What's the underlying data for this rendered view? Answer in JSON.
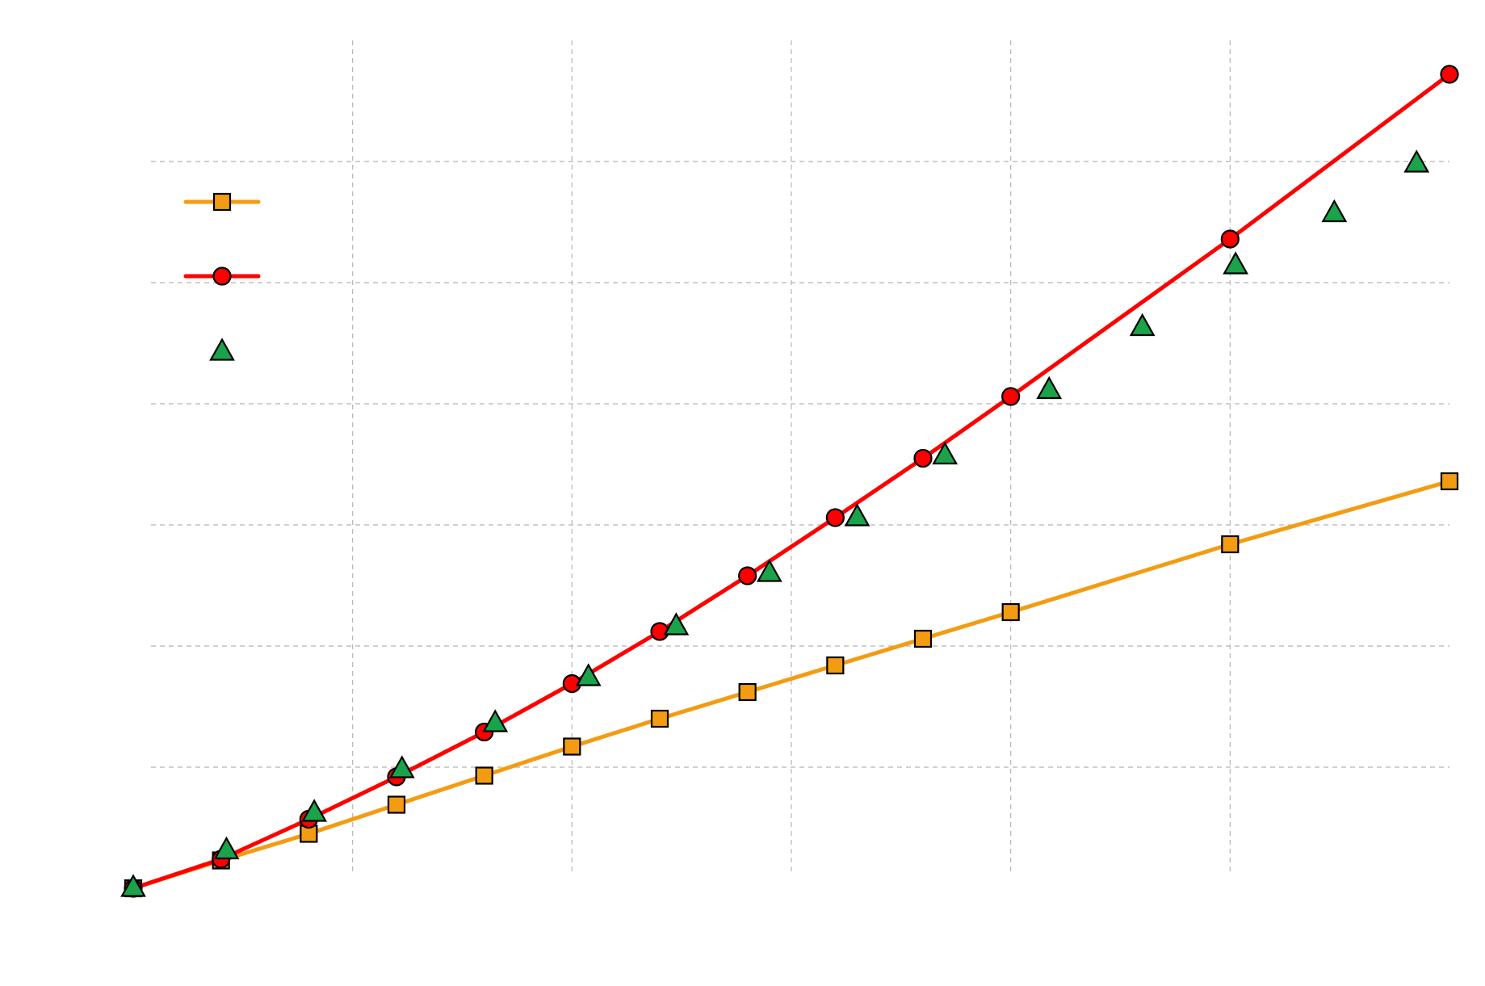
{
  "chart_data": {
    "type": "line",
    "title": "",
    "xlabel": "",
    "ylabel": "",
    "xlim": [
      0,
      12
    ],
    "ylim": [
      -0.2,
      6.5
    ],
    "x_gridlines": [
      2,
      4,
      6,
      8,
      10
    ],
    "y_gridlines": [
      1,
      2,
      3,
      4,
      5,
      6
    ],
    "grid": true,
    "legend_position": "upper-left",
    "series": [
      {
        "color": "#f39c12",
        "marker": "square",
        "line": true,
        "x": [
          0,
          0.8,
          1.6,
          2.4,
          3.2,
          4.0,
          4.8,
          5.6,
          6.4,
          7.2,
          8.0,
          10.0,
          12.0
        ],
        "y": [
          0.0,
          0.23,
          0.45,
          0.69,
          0.93,
          1.17,
          1.4,
          1.62,
          1.84,
          2.06,
          2.28,
          2.84,
          3.36
        ]
      },
      {
        "color": "#ff0000",
        "marker": "circle",
        "line": true,
        "x": [
          0,
          0.8,
          1.6,
          2.4,
          3.2,
          4.0,
          4.8,
          5.6,
          6.4,
          7.2,
          8.0,
          10.0,
          12.0
        ],
        "y": [
          0.0,
          0.24,
          0.57,
          0.92,
          1.29,
          1.69,
          2.12,
          2.58,
          3.06,
          3.55,
          4.06,
          5.36,
          6.72
        ]
      },
      {
        "color": "#1aa34a",
        "marker": "triangle",
        "line": false,
        "x": [
          0,
          0.85,
          1.65,
          2.45,
          3.3,
          4.15,
          4.95,
          5.8,
          6.6,
          7.4,
          8.35,
          9.2,
          10.05,
          10.95,
          11.7
        ],
        "y": [
          0.0,
          0.31,
          0.62,
          0.98,
          1.36,
          1.74,
          2.16,
          2.6,
          3.06,
          3.57,
          4.11,
          4.63,
          5.14,
          5.57,
          5.98
        ]
      }
    ]
  }
}
